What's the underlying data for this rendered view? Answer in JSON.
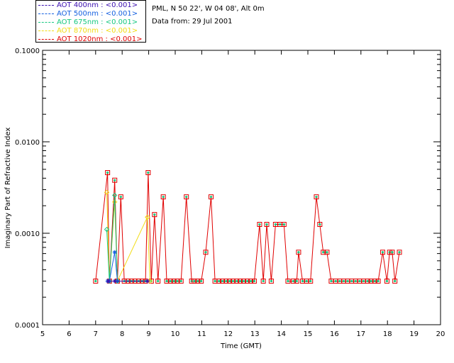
{
  "header": {
    "location": "PML, N 50 22', W 04 08', Alt 0m",
    "data_from": "Data from: 29 Jul 2001"
  },
  "legend": [
    {
      "label": "AOT  400nm : <0.001>",
      "color": "#3b0fb0"
    },
    {
      "label": "AOT  500nm : <0.001>",
      "color": "#1560e0"
    },
    {
      "label": "AOT  675nm : <0.001>",
      "color": "#16c880"
    },
    {
      "label": "AOT  870nm : <0.001>",
      "color": "#f2dc14"
    },
    {
      "label": "AOT 1020nm : <0.001>",
      "color": "#e00000"
    }
  ],
  "chart_data": {
    "type": "line",
    "title": "",
    "xlabel": "Time (GMT)",
    "ylabel": "Imaginary Part of Refractive Index",
    "xlim": [
      5,
      20
    ],
    "ylim": [
      0.0001,
      0.1
    ],
    "y_scale": "log",
    "x_ticks": [
      5,
      6,
      7,
      8,
      9,
      10,
      11,
      12,
      13,
      14,
      15,
      16,
      17,
      18,
      19,
      20
    ],
    "y_ticks": [
      {
        "value": 0.0001,
        "label": "0.0001"
      },
      {
        "value": 0.001,
        "label": "0.0010"
      },
      {
        "value": 0.01,
        "label": "0.0100"
      },
      {
        "value": 0.1,
        "label": "0.1000"
      }
    ],
    "grid": false,
    "series": [
      {
        "name": "AOT 1020nm",
        "x": [
          7.0,
          7.45,
          7.52,
          7.72,
          7.82,
          7.95,
          8.08,
          8.22,
          8.35,
          8.48,
          8.62,
          8.75,
          8.88,
          8.98,
          9.1,
          9.22,
          9.35,
          9.55,
          9.68,
          9.82,
          9.95,
          10.08,
          10.22,
          10.42,
          10.62,
          10.72,
          10.85,
          10.98,
          11.15,
          11.35,
          11.5,
          11.65,
          11.78,
          11.92,
          12.05,
          12.18,
          12.32,
          12.45,
          12.58,
          12.72,
          12.85,
          12.98,
          13.18,
          13.32,
          13.45,
          13.62,
          13.78,
          13.95,
          14.1,
          14.25,
          14.45,
          14.58,
          14.65,
          14.8,
          14.95,
          15.1,
          15.32,
          15.45,
          15.58,
          15.72,
          15.88,
          16.05,
          16.2,
          16.35,
          16.5,
          16.65,
          16.8,
          16.95,
          17.1,
          17.25,
          17.38,
          17.52,
          17.65,
          17.82,
          17.98,
          18.08,
          18.18,
          18.28,
          18.45
        ],
        "values": [
          0.0003,
          0.0046,
          0.0003,
          0.0038,
          0.0003,
          0.0025,
          0.0003,
          0.0003,
          0.0003,
          0.0003,
          0.0003,
          0.0003,
          0.0003,
          0.0046,
          0.0003,
          0.0016,
          0.0003,
          0.0025,
          0.0003,
          0.0003,
          0.0003,
          0.0003,
          0.0003,
          0.0025,
          0.0003,
          0.0003,
          0.0003,
          0.0003,
          0.00062,
          0.0025,
          0.0003,
          0.0003,
          0.0003,
          0.0003,
          0.0003,
          0.0003,
          0.0003,
          0.0003,
          0.0003,
          0.0003,
          0.0003,
          0.0003,
          0.00125,
          0.0003,
          0.00125,
          0.0003,
          0.00125,
          0.00125,
          0.00125,
          0.0003,
          0.0003,
          0.0003,
          0.00062,
          0.0003,
          0.0003,
          0.0003,
          0.0025,
          0.00125,
          0.00062,
          0.00062,
          0.0003,
          0.0003,
          0.0003,
          0.0003,
          0.0003,
          0.0003,
          0.0003,
          0.0003,
          0.0003,
          0.0003,
          0.0003,
          0.0003,
          0.0003,
          0.00062,
          0.0003,
          0.00062,
          0.00062,
          0.0003,
          0.00062
        ]
      },
      {
        "name": "AOT 870nm",
        "x": [
          7.42,
          7.52,
          7.72,
          7.82,
          8.95,
          9.05
        ],
        "values": [
          0.0028,
          0.0003,
          0.0022,
          0.0003,
          0.0015,
          0.0003
        ]
      },
      {
        "name": "AOT 675nm",
        "x": [
          7.42,
          7.52,
          7.72,
          7.82
        ],
        "values": [
          0.0011,
          0.0003,
          0.0026,
          0.0003
        ]
      },
      {
        "name": "AOT 500nm",
        "x": [
          7.45,
          7.52,
          7.72,
          7.82
        ],
        "values": [
          0.0003,
          0.0003,
          0.00062,
          0.0003
        ]
      },
      {
        "name": "AOT 400nm",
        "x": [
          7.48,
          7.72,
          8.95
        ],
        "values": [
          0.0003,
          0.0003,
          0.0003
        ]
      }
    ]
  }
}
